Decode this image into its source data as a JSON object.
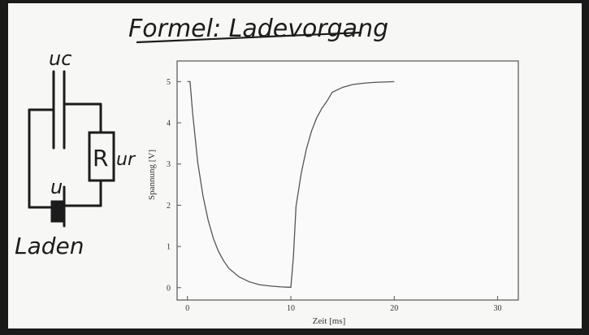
{
  "title": "Formel: Ladevorgang",
  "circuit": {
    "capacitor_label": "uc",
    "resistor_label": "R",
    "resistor_voltage_label": "ur",
    "source_label": "u",
    "caption": "Laden"
  },
  "chart_data": {
    "type": "line",
    "xlabel": "Zeit [ms]",
    "ylabel": "Spannung [V]",
    "xlim": [
      -1,
      32
    ],
    "ylim": [
      -0.3,
      5.5
    ],
    "xticks": [
      0,
      10,
      20,
      30
    ],
    "yticks": [
      0,
      1,
      2,
      3,
      4,
      5
    ],
    "grid": false,
    "series": [
      {
        "x": [
          0,
          0.25,
          0.5,
          1,
          1.5,
          2,
          2.5,
          3,
          3.5,
          4,
          5,
          6,
          7,
          8,
          9,
          9.8,
          10,
          10.25,
          10.5,
          11,
          11.5,
          12,
          12.5,
          13,
          13.5,
          14,
          15,
          16,
          17,
          18,
          19,
          20
        ],
        "y": [
          5,
          5,
          4.24,
          3.03,
          2.23,
          1.64,
          1.2,
          0.88,
          0.65,
          0.47,
          0.26,
          0.14,
          0.07,
          0.04,
          0.02,
          0.01,
          0.01,
          0.76,
          1.97,
          2.77,
          3.36,
          3.8,
          4.12,
          4.35,
          4.53,
          4.74,
          4.86,
          4.93,
          4.96,
          4.98,
          4.99,
          5
        ]
      }
    ]
  }
}
